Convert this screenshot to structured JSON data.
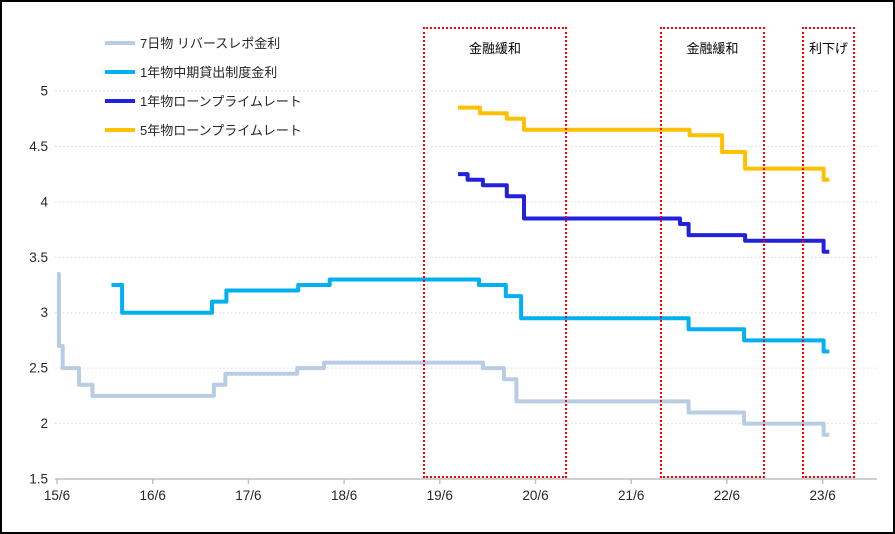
{
  "chart_data": {
    "type": "line",
    "step": true,
    "title": "",
    "legend_position": "top-left",
    "x_axis": {
      "tick_labels": [
        "15/6",
        "16/6",
        "17/6",
        "18/6",
        "19/6",
        "20/6",
        "21/6",
        "22/6",
        "23/6"
      ],
      "tick_years": [
        2015.45,
        2016.45,
        2017.45,
        2018.45,
        2019.45,
        2020.45,
        2021.45,
        2022.45,
        2023.45
      ],
      "range_years": [
        2015.43,
        2024.02
      ]
    },
    "y_axis": {
      "tick_labels": [
        "1.5",
        "2",
        "2.5",
        "3",
        "3.5",
        "4",
        "4.5",
        "5"
      ],
      "tick_values": [
        1.5,
        2,
        2.5,
        3,
        3.5,
        4,
        4.5,
        5
      ],
      "range": [
        1.5,
        5
      ],
      "gridlines": "dotted"
    },
    "series": [
      {
        "key": "7d-reverse-repo",
        "name": "7日物 リバースレポ金利",
        "color": "#b8cce4",
        "x_end": 2023.52,
        "points": [
          [
            2015.45,
            3.35
          ],
          [
            2015.47,
            2.7
          ],
          [
            2015.51,
            2.5
          ],
          [
            2015.68,
            2.35
          ],
          [
            2015.82,
            2.25
          ],
          [
            2017.09,
            2.35
          ],
          [
            2017.21,
            2.45
          ],
          [
            2017.96,
            2.5
          ],
          [
            2018.24,
            2.55
          ],
          [
            2019.9,
            2.5
          ],
          [
            2020.12,
            2.4
          ],
          [
            2020.25,
            2.2
          ],
          [
            2022.05,
            2.1
          ],
          [
            2022.63,
            2.0
          ],
          [
            2023.46,
            1.9
          ]
        ]
      },
      {
        "key": "1y-mlf",
        "name": "1年物中期貸出制度金利",
        "color": "#00b0f0",
        "x_end": 2023.52,
        "points": [
          [
            2016.02,
            3.25
          ],
          [
            2016.13,
            3.0
          ],
          [
            2017.07,
            3.1
          ],
          [
            2017.22,
            3.2
          ],
          [
            2017.97,
            3.25
          ],
          [
            2018.3,
            3.3
          ],
          [
            2019.86,
            3.25
          ],
          [
            2020.14,
            3.15
          ],
          [
            2020.3,
            2.95
          ],
          [
            2022.05,
            2.85
          ],
          [
            2022.63,
            2.75
          ],
          [
            2023.46,
            2.65
          ]
        ]
      },
      {
        "key": "1y-lpr",
        "name": "1年物ローンプライムレート",
        "color": "#2222dd",
        "x_end": 2023.52,
        "points": [
          [
            2019.64,
            4.25
          ],
          [
            2019.74,
            4.2
          ],
          [
            2019.9,
            4.15
          ],
          [
            2020.15,
            4.05
          ],
          [
            2020.33,
            3.85
          ],
          [
            2021.96,
            3.8
          ],
          [
            2022.05,
            3.7
          ],
          [
            2022.64,
            3.65
          ],
          [
            2023.46,
            3.55
          ]
        ]
      },
      {
        "key": "5y-lpr",
        "name": "5年物ローンプライムレート",
        "color": "#ffc000",
        "x_end": 2023.52,
        "points": [
          [
            2019.64,
            4.85
          ],
          [
            2019.87,
            4.8
          ],
          [
            2020.15,
            4.75
          ],
          [
            2020.33,
            4.65
          ],
          [
            2022.06,
            4.6
          ],
          [
            2022.4,
            4.45
          ],
          [
            2022.64,
            4.3
          ],
          [
            2023.46,
            4.2
          ]
        ]
      }
    ],
    "annotations": [
      {
        "label": "金融緩和",
        "x_from": 2019.3,
        "x_to": 2020.8
      },
      {
        "label": "金融緩和",
        "x_from": 2021.77,
        "x_to": 2022.87
      },
      {
        "label": "利下げ",
        "x_from": 2023.26,
        "x_to": 2023.81
      }
    ],
    "annotation_color": "#ff0000"
  },
  "legend": {
    "items": [
      {
        "label": "7日物 リバースレポ金利",
        "color": "#b8cce4"
      },
      {
        "label": "1年物中期貸出制度金利",
        "color": "#00b0f0"
      },
      {
        "label": "1年物ローンプライムレート",
        "color": "#2222dd"
      },
      {
        "label": "5年物ローンプライムレート",
        "color": "#ffc000"
      }
    ]
  },
  "colors": {
    "axis": "#bfbfbf",
    "gridline": "#d9d9d9",
    "text": "#262626",
    "background": "#ffffff",
    "frame_border": "#000000"
  }
}
